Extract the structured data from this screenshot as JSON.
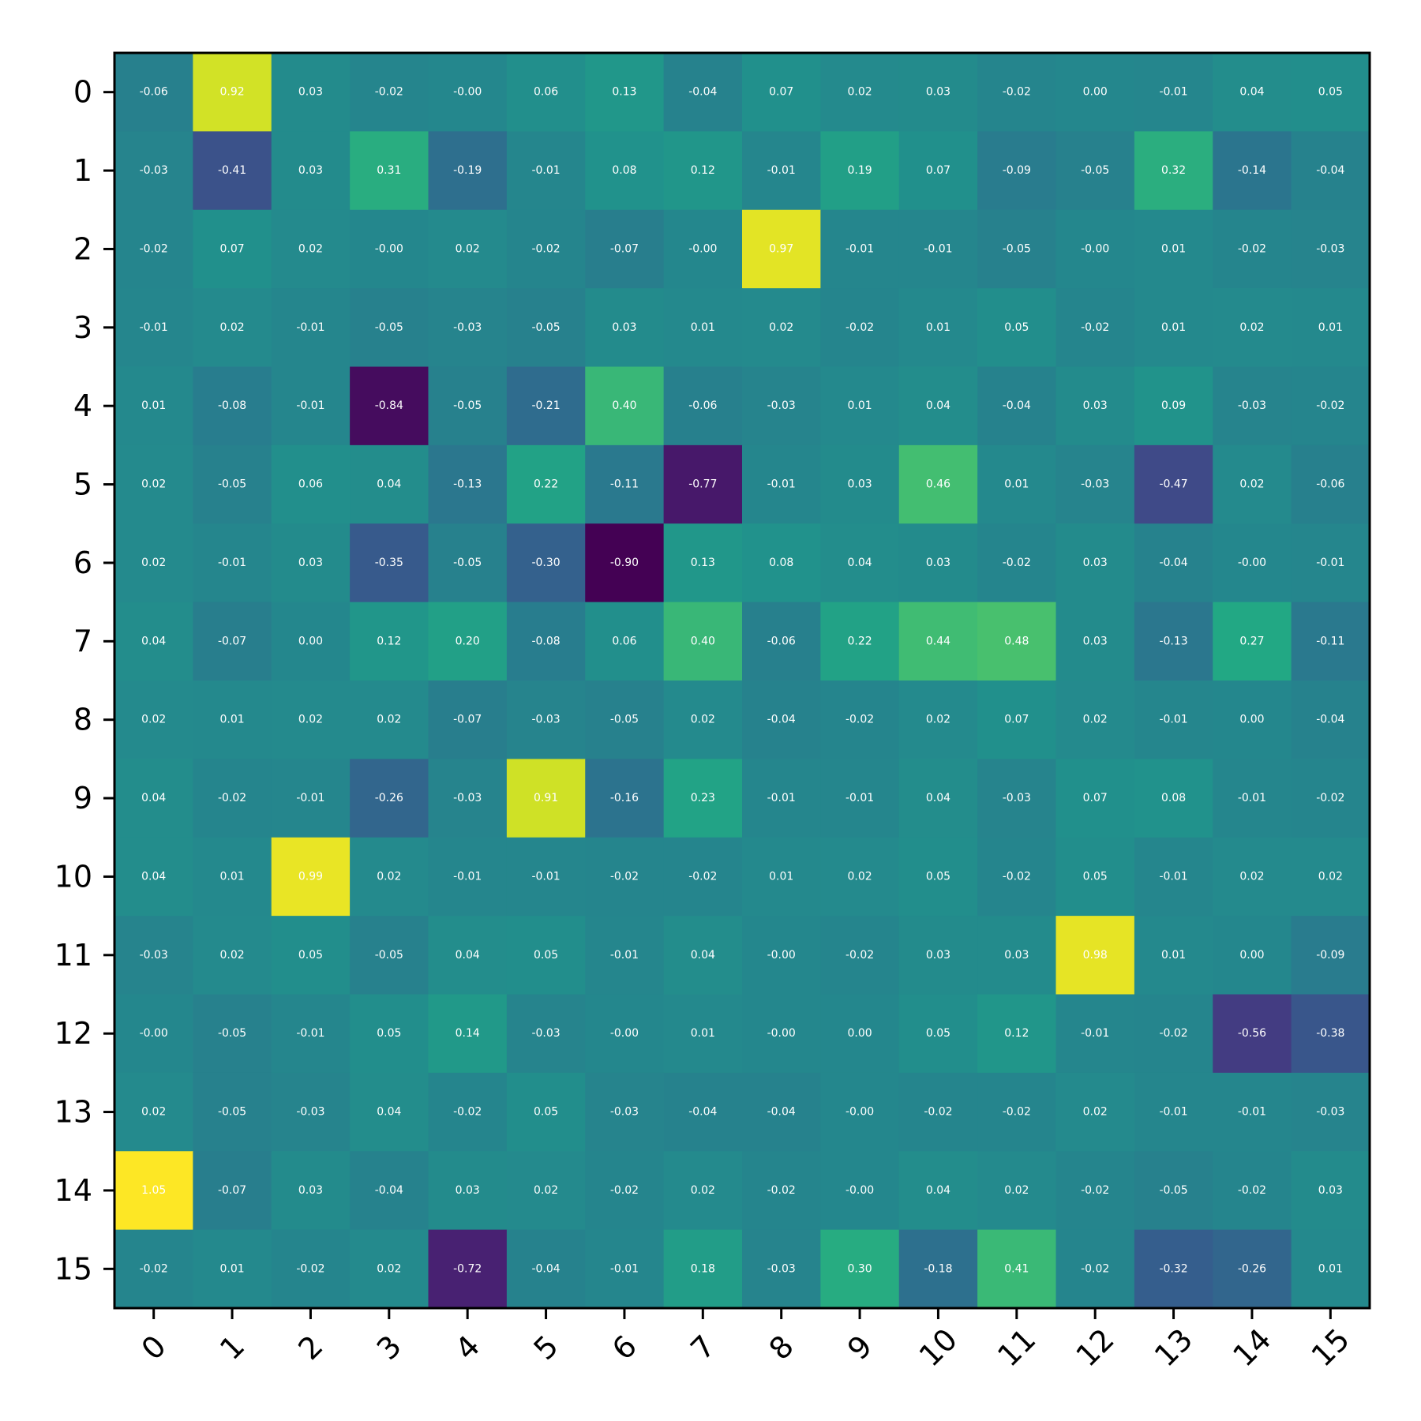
{
  "chart_data": {
    "type": "heatmap",
    "title": "",
    "xlabel": "",
    "ylabel": "",
    "x_categories": [
      "0",
      "1",
      "2",
      "3",
      "4",
      "5",
      "6",
      "7",
      "8",
      "9",
      "10",
      "11",
      "12",
      "13",
      "14",
      "15"
    ],
    "y_categories": [
      "0",
      "1",
      "2",
      "3",
      "4",
      "5",
      "6",
      "7",
      "8",
      "9",
      "10",
      "11",
      "12",
      "13",
      "14",
      "15"
    ],
    "colormap": "viridis",
    "value_range": [
      -0.9,
      1.05
    ],
    "cell_label_color": "#ffffff",
    "values": [
      [
        -0.06,
        0.92,
        0.03,
        -0.02,
        -0.0,
        0.06,
        0.13,
        -0.04,
        0.07,
        0.02,
        0.03,
        -0.02,
        0.0,
        -0.01,
        0.04,
        0.05
      ],
      [
        -0.03,
        -0.41,
        0.03,
        0.31,
        -0.19,
        -0.01,
        0.08,
        0.12,
        -0.01,
        0.19,
        0.07,
        -0.09,
        -0.05,
        0.32,
        -0.14,
        -0.04
      ],
      [
        -0.02,
        0.07,
        0.02,
        -0.0,
        0.02,
        -0.02,
        -0.07,
        -0.0,
        0.97,
        -0.01,
        -0.01,
        -0.05,
        -0.0,
        0.01,
        -0.02,
        -0.03
      ],
      [
        -0.01,
        0.02,
        -0.01,
        -0.05,
        -0.03,
        -0.05,
        0.03,
        0.01,
        0.02,
        -0.02,
        0.01,
        0.05,
        -0.02,
        0.01,
        0.02,
        0.01
      ],
      [
        0.01,
        -0.08,
        -0.01,
        -0.84,
        -0.05,
        -0.21,
        0.4,
        -0.06,
        -0.03,
        0.01,
        0.04,
        -0.04,
        0.03,
        0.09,
        -0.03,
        -0.02
      ],
      [
        0.02,
        -0.05,
        0.06,
        0.04,
        -0.13,
        0.22,
        -0.11,
        -0.77,
        -0.01,
        0.03,
        0.46,
        0.01,
        -0.03,
        -0.47,
        0.02,
        -0.06
      ],
      [
        0.02,
        -0.01,
        0.03,
        -0.35,
        -0.05,
        -0.3,
        -0.9,
        0.13,
        0.08,
        0.04,
        0.03,
        -0.02,
        0.03,
        -0.04,
        -0.0,
        -0.01
      ],
      [
        0.04,
        -0.07,
        0.0,
        0.12,
        0.2,
        -0.08,
        0.06,
        0.4,
        -0.06,
        0.22,
        0.44,
        0.48,
        0.03,
        -0.13,
        0.27,
        -0.11
      ],
      [
        0.02,
        0.01,
        0.02,
        0.02,
        -0.07,
        -0.03,
        -0.05,
        0.02,
        -0.04,
        -0.02,
        0.02,
        0.07,
        0.02,
        -0.01,
        0.0,
        -0.04
      ],
      [
        0.04,
        -0.02,
        -0.01,
        -0.26,
        -0.03,
        0.91,
        -0.16,
        0.23,
        -0.01,
        -0.01,
        0.04,
        -0.03,
        0.07,
        0.08,
        -0.01,
        -0.02
      ],
      [
        0.04,
        0.01,
        0.99,
        0.02,
        -0.01,
        -0.01,
        -0.02,
        -0.02,
        0.01,
        0.02,
        0.05,
        -0.02,
        0.05,
        -0.01,
        0.02,
        0.02
      ],
      [
        -0.03,
        0.02,
        0.05,
        -0.05,
        0.04,
        0.05,
        -0.01,
        0.04,
        -0.0,
        -0.02,
        0.03,
        0.03,
        0.98,
        0.01,
        0.0,
        -0.09
      ],
      [
        -0.0,
        -0.05,
        -0.01,
        0.05,
        0.14,
        -0.03,
        -0.0,
        0.01,
        -0.0,
        0.0,
        0.05,
        0.12,
        -0.01,
        -0.02,
        -0.56,
        -0.38
      ],
      [
        0.02,
        -0.05,
        -0.03,
        0.04,
        -0.02,
        0.05,
        -0.03,
        -0.04,
        -0.04,
        -0.0,
        -0.02,
        -0.02,
        0.02,
        -0.01,
        -0.01,
        -0.03
      ],
      [
        1.05,
        -0.07,
        0.03,
        -0.04,
        0.03,
        0.02,
        -0.02,
        0.02,
        -0.02,
        -0.0,
        0.04,
        0.02,
        -0.02,
        -0.05,
        -0.02,
        0.03
      ],
      [
        -0.02,
        0.01,
        -0.02,
        0.02,
        -0.72,
        -0.04,
        -0.01,
        0.18,
        -0.03,
        0.3,
        -0.18,
        0.41,
        -0.02,
        -0.32,
        -0.26,
        0.01
      ]
    ],
    "value_labels": [
      [
        "-0.06",
        "0.92",
        "0.03",
        "-0.02",
        "-0.00",
        "0.06",
        "0.13",
        "-0.04",
        "0.07",
        "0.02",
        "0.03",
        "-0.02",
        "0.00",
        "-0.01",
        "0.04",
        "0.05"
      ],
      [
        "-0.03",
        "-0.41",
        "0.03",
        "0.31",
        "-0.19",
        "-0.01",
        "0.08",
        "0.12",
        "-0.01",
        "0.19",
        "0.07",
        "-0.09",
        "-0.05",
        "0.32",
        "-0.14",
        "-0.04"
      ],
      [
        "-0.02",
        "0.07",
        "0.02",
        "-0.00",
        "0.02",
        "-0.02",
        "-0.07",
        "-0.00",
        "0.97",
        "-0.01",
        "-0.01",
        "-0.05",
        "-0.00",
        "0.01",
        "-0.02",
        "-0.03"
      ],
      [
        "-0.01",
        "0.02",
        "-0.01",
        "-0.05",
        "-0.03",
        "-0.05",
        "0.03",
        "0.01",
        "0.02",
        "-0.02",
        "0.01",
        "0.05",
        "-0.02",
        "0.01",
        "0.02",
        "0.01"
      ],
      [
        "0.01",
        "-0.08",
        "-0.01",
        "-0.84",
        "-0.05",
        "-0.21",
        "0.40",
        "-0.06",
        "-0.03",
        "0.01",
        "0.04",
        "-0.04",
        "0.03",
        "0.09",
        "-0.03",
        "-0.02"
      ],
      [
        "0.02",
        "-0.05",
        "0.06",
        "0.04",
        "-0.13",
        "0.22",
        "-0.11",
        "-0.77",
        "-0.01",
        "0.03",
        "0.46",
        "0.01",
        "-0.03",
        "-0.47",
        "0.02",
        "-0.06"
      ],
      [
        "0.02",
        "-0.01",
        "0.03",
        "-0.35",
        "-0.05",
        "-0.30",
        "-0.90",
        "0.13",
        "0.08",
        "0.04",
        "0.03",
        "-0.02",
        "0.03",
        "-0.04",
        "-0.00",
        "-0.01"
      ],
      [
        "0.04",
        "-0.07",
        "0.00",
        "0.12",
        "0.20",
        "-0.08",
        "0.06",
        "0.40",
        "-0.06",
        "0.22",
        "0.44",
        "0.48",
        "0.03",
        "-0.13",
        "0.27",
        "-0.11"
      ],
      [
        "0.02",
        "0.01",
        "0.02",
        "0.02",
        "-0.07",
        "-0.03",
        "-0.05",
        "0.02",
        "-0.04",
        "-0.02",
        "0.02",
        "0.07",
        "0.02",
        "-0.01",
        "0.00",
        "-0.04"
      ],
      [
        "0.04",
        "-0.02",
        "-0.01",
        "-0.26",
        "-0.03",
        "0.91",
        "-0.16",
        "0.23",
        "-0.01",
        "-0.01",
        "0.04",
        "-0.03",
        "0.07",
        "0.08",
        "-0.01",
        "-0.02"
      ],
      [
        "0.04",
        "0.01",
        "0.99",
        "0.02",
        "-0.01",
        "-0.01",
        "-0.02",
        "-0.02",
        "0.01",
        "0.02",
        "0.05",
        "-0.02",
        "0.05",
        "-0.01",
        "0.02",
        "0.02"
      ],
      [
        "-0.03",
        "0.02",
        "0.05",
        "-0.05",
        "0.04",
        "0.05",
        "-0.01",
        "0.04",
        "-0.00",
        "-0.02",
        "0.03",
        "0.03",
        "0.98",
        "0.01",
        "0.00",
        "-0.09"
      ],
      [
        "-0.00",
        "-0.05",
        "-0.01",
        "0.05",
        "0.14",
        "-0.03",
        "-0.00",
        "0.01",
        "-0.00",
        "0.00",
        "0.05",
        "0.12",
        "-0.01",
        "-0.02",
        "-0.56",
        "-0.38"
      ],
      [
        "0.02",
        "-0.05",
        "-0.03",
        "0.04",
        "-0.02",
        "0.05",
        "-0.03",
        "-0.04",
        "-0.04",
        "-0.00",
        "-0.02",
        "-0.02",
        "0.02",
        "-0.01",
        "-0.01",
        "-0.03"
      ],
      [
        "1.05",
        "-0.07",
        "0.03",
        "-0.04",
        "0.03",
        "0.02",
        "-0.02",
        "0.02",
        "-0.02",
        "-0.00",
        "0.04",
        "0.02",
        "-0.02",
        "-0.05",
        "-0.02",
        "0.03"
      ],
      [
        "-0.02",
        "0.01",
        "-0.02",
        "0.02",
        "-0.72",
        "-0.04",
        "-0.01",
        "0.18",
        "-0.03",
        "0.30",
        "-0.18",
        "0.41",
        "-0.02",
        "-0.32",
        "-0.26",
        "0.01"
      ]
    ],
    "grid": false,
    "legend": "none"
  }
}
